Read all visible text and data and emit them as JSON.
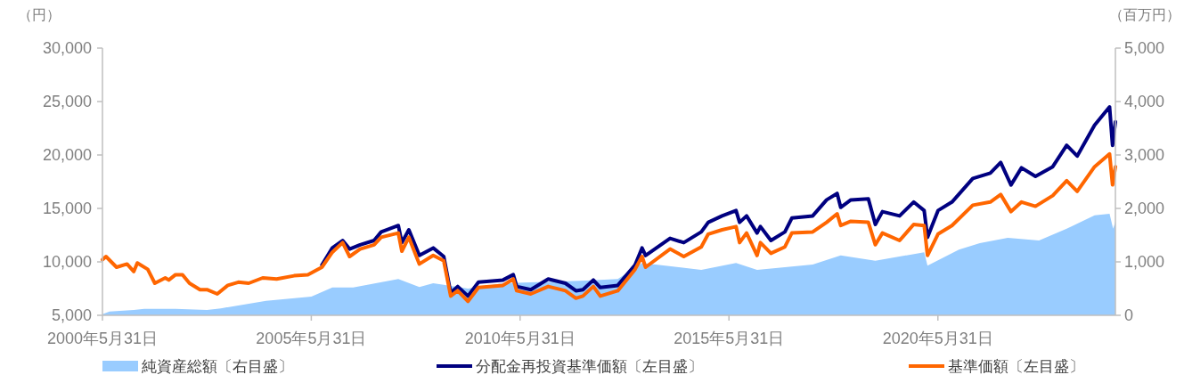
{
  "chart_data": {
    "type": "line",
    "ylabel": "（円）",
    "y2label": "（百万円）",
    "legend": "bottom",
    "grid": false,
    "xlim": [
      "2000-05-31",
      "2024-08-30"
    ],
    "xticks": [
      {
        "value": "2000-05-31",
        "label": "2000年5月31日"
      },
      {
        "value": "2005-05-31",
        "label": "2005年5月31日"
      },
      {
        "value": "2010-05-31",
        "label": "2010年5月31日"
      },
      {
        "value": "2015-05-31",
        "label": "2015年5月31日"
      },
      {
        "value": "2020-05-31",
        "label": "2020年5月31日"
      }
    ],
    "ylim": [
      5000,
      30000
    ],
    "yticks": [
      {
        "value": 5000,
        "label": "5,000"
      },
      {
        "value": 10000,
        "label": "10,000"
      },
      {
        "value": 15000,
        "label": "15,000"
      },
      {
        "value": 20000,
        "label": "20,000"
      },
      {
        "value": 25000,
        "label": "25,000"
      },
      {
        "value": 30000,
        "label": "30,000"
      }
    ],
    "y2lim": [
      0,
      5000
    ],
    "y2ticks": [
      0,
      {
        "value": 1000,
        "label": "1,000"
      },
      {
        "value": 2000,
        "label": "2,000"
      },
      {
        "value": 3000,
        "label": "3,000"
      },
      {
        "value": 4000,
        "label": "4,000"
      },
      {
        "value": 5000,
        "label": "5,000"
      }
    ],
    "x": [
      "2000-05-31",
      "2000-07",
      "2000-10",
      "2001-01",
      "2001-03",
      "2001-04",
      "2001-07",
      "2001-09",
      "2001-12",
      "2002-01",
      "2002-03",
      "2002-05",
      "2002-07",
      "2002-10",
      "2002-12",
      "2003-03",
      "2003-06",
      "2003-09",
      "2003-12",
      "2004-04",
      "2004-08",
      "2005-01",
      "2005-05",
      "2005-09",
      "2005-12",
      "2006-03",
      "2006-05",
      "2006-08",
      "2006-12",
      "2007-02",
      "2007-07",
      "2007-08",
      "2007-10",
      "2008-01",
      "2008-05",
      "2008-08",
      "2008-10",
      "2008-12",
      "2009-03",
      "2009-06",
      "2010-01",
      "2010-04",
      "2010-05",
      "2010-09",
      "2011-02",
      "2011-07",
      "2011-10",
      "2011-12",
      "2012-03",
      "2012-05",
      "2012-10",
      "2013-03",
      "2013-05",
      "2013-06",
      "2014-01",
      "2014-05",
      "2014-10",
      "2014-12",
      "2015-04",
      "2015-08",
      "2015-09",
      "2015-11",
      "2016-02",
      "2016-03",
      "2016-06",
      "2016-10",
      "2016-12",
      "2017-06",
      "2017-10",
      "2018-01",
      "2018-02",
      "2018-05",
      "2018-10",
      "2018-12",
      "2019-02",
      "2019-07",
      "2019-11",
      "2020-02",
      "2020-03",
      "2020-06",
      "2020-10",
      "2021-04",
      "2021-09",
      "2021-12",
      "2022-03",
      "2022-06",
      "2022-10",
      "2023-03",
      "2023-07",
      "2023-10",
      "2024-03",
      "2024-07-10",
      "2024-08-05",
      "2024-08-30"
    ],
    "series": [
      {
        "name": "純資産総額〔右目盛〕",
        "type": "area",
        "axis": "y2",
        "color": "#99ccff",
        "x": [
          "2000-05-31",
          "2000-08",
          "2001-03",
          "2001-06",
          "2002-03",
          "2002-12",
          "2003-04",
          "2004-05",
          "2005-06",
          "2005-12",
          "2006-06",
          "2007-07",
          "2008-01",
          "2008-05",
          "2008-08",
          "2009-03",
          "2010-01",
          "2012-01",
          "2012-10",
          "2013-05",
          "2014-10",
          "2015-08",
          "2016-02",
          "2017-06",
          "2018-02",
          "2018-12",
          "2020-02",
          "2020-03",
          "2020-12",
          "2021-06",
          "2022-02",
          "2022-11",
          "2023-07",
          "2024-03",
          "2024-07-10",
          "2024-08-10",
          "2024-08-30"
        ],
        "values": [
          20,
          70,
          100,
          120,
          120,
          100,
          130,
          270,
          350,
          520,
          520,
          680,
          530,
          600,
          570,
          500,
          600,
          650,
          680,
          980,
          850,
          980,
          850,
          950,
          1120,
          1020,
          1180,
          930,
          1230,
          1350,
          1450,
          1400,
          1620,
          1870,
          1900,
          1620,
          1750
        ]
      },
      {
        "name": "分配金再投資基準価額〔左目盛〕",
        "color": "#000080",
        "values": [
          null,
          null,
          null,
          null,
          null,
          null,
          null,
          null,
          null,
          null,
          null,
          null,
          null,
          null,
          null,
          null,
          null,
          null,
          null,
          null,
          null,
          null,
          null,
          9700,
          11300,
          12000,
          11200,
          11600,
          12000,
          12800,
          13400,
          11800,
          13000,
          10600,
          11300,
          10500,
          7100,
          7700,
          6800,
          8100,
          8300,
          8800,
          7700,
          7400,
          8400,
          8000,
          7300,
          7400,
          8300,
          7600,
          7800,
          9700,
          11300,
          10600,
          12200,
          11800,
          12800,
          13700,
          14300,
          14800,
          13700,
          14300,
          12700,
          13300,
          12000,
          12800,
          14100,
          14300,
          15800,
          16400,
          15100,
          15800,
          15900,
          13500,
          14700,
          14300,
          15600,
          14800,
          12300,
          14800,
          15600,
          17800,
          18300,
          19300,
          17200,
          18800,
          18000,
          18900,
          20900,
          19900,
          22800,
          24500,
          20900,
          23100
        ]
      },
      {
        "name": "基準価額〔左目盛〕",
        "color": "#ff6600",
        "values": [
          10200,
          10500,
          9500,
          9800,
          9100,
          9900,
          9300,
          8000,
          8500,
          8300,
          8800,
          8800,
          8000,
          7400,
          7400,
          7000,
          7800,
          8100,
          8000,
          8500,
          8400,
          8700,
          8800,
          9500,
          10900,
          11800,
          10500,
          11200,
          11600,
          12300,
          12700,
          11000,
          12300,
          9800,
          10600,
          10100,
          6800,
          7300,
          6300,
          7600,
          7800,
          8400,
          7300,
          7000,
          7700,
          7300,
          6600,
          6800,
          7700,
          6800,
          7300,
          9300,
          10500,
          9500,
          11200,
          10500,
          11400,
          12600,
          13000,
          13300,
          11800,
          12700,
          10600,
          11800,
          10800,
          11400,
          12700,
          12800,
          13700,
          14500,
          13400,
          13800,
          13700,
          11600,
          12700,
          12000,
          13500,
          13400,
          10600,
          12600,
          13400,
          15300,
          15600,
          16300,
          14700,
          15600,
          15200,
          16200,
          17600,
          16600,
          18900,
          20100,
          17200,
          18900
        ]
      }
    ]
  }
}
